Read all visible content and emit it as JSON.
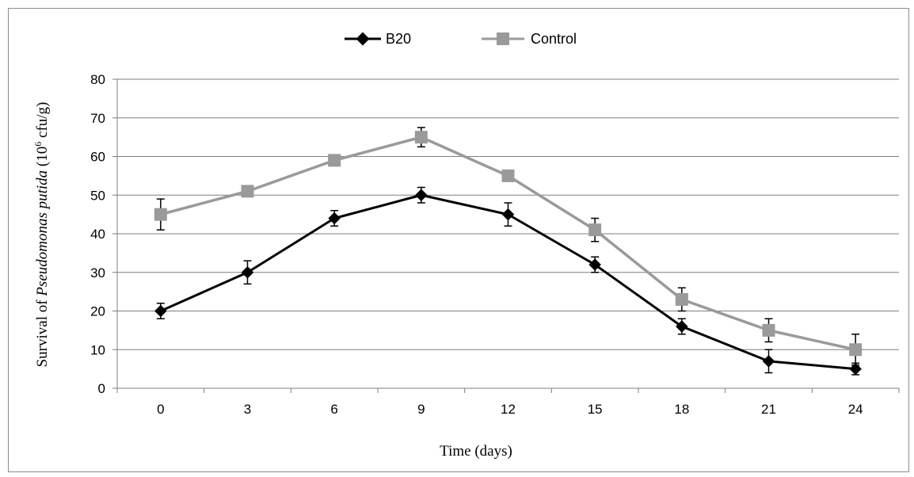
{
  "chart_data": {
    "type": "line",
    "x": [
      0,
      3,
      6,
      9,
      12,
      15,
      18,
      21,
      24
    ],
    "xlabel": "Time (days)",
    "ylabel_parts": [
      "Survival of ",
      "Pseudomonas putida",
      " (10",
      "6",
      " cfu/g)"
    ],
    "ylim": [
      0,
      80
    ],
    "yticks": [
      0,
      10,
      20,
      30,
      40,
      50,
      60,
      70,
      80
    ],
    "grid": "horizontal",
    "legend_position": "top-center",
    "series": [
      {
        "name": "B20",
        "color": "#000000",
        "marker": "diamond",
        "values": [
          20,
          30,
          44,
          50,
          45,
          32,
          16,
          7,
          5
        ],
        "errors": [
          2,
          3,
          2,
          2,
          3,
          2,
          2,
          3,
          1.5
        ]
      },
      {
        "name": "Control",
        "color": "#9a9a9a",
        "marker": "square",
        "values": [
          45,
          51,
          59,
          65,
          55,
          41,
          23,
          15,
          10
        ],
        "errors": [
          4,
          1,
          1,
          2.5,
          1,
          3,
          3,
          3,
          4
        ]
      }
    ]
  }
}
